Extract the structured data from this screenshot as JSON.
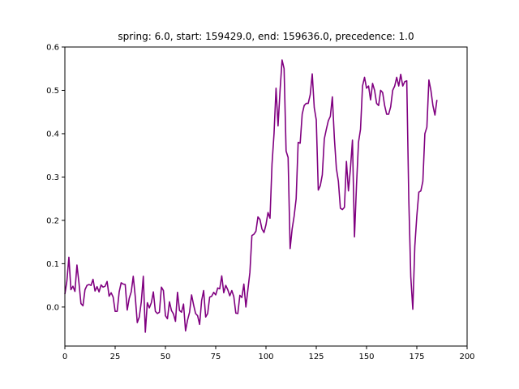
{
  "chart_data": {
    "type": "line",
    "title": "spring: 6.0, start: 159429.0, end: 159636.0, precedence: 1.0",
    "xlabel": "",
    "ylabel": "",
    "xlim": [
      0,
      200
    ],
    "ylim": [
      -0.09,
      0.6
    ],
    "xticks": [
      0,
      25,
      50,
      75,
      100,
      125,
      150,
      175,
      200
    ],
    "yticks": [
      0.0,
      0.1,
      0.2,
      0.3,
      0.4,
      0.5,
      0.6
    ],
    "ytick_labels": [
      "0.0",
      "0.1",
      "0.2",
      "0.3",
      "0.4",
      "0.5",
      "0.6"
    ],
    "grid": false,
    "legend": "none",
    "series": [
      {
        "color": "#800080",
        "x": [
          0,
          1,
          2,
          3,
          4,
          5,
          6,
          7,
          8,
          9,
          10,
          11,
          12,
          13,
          14,
          15,
          16,
          17,
          18,
          19,
          20,
          21,
          22,
          23,
          24,
          25,
          26,
          27,
          28,
          29,
          30,
          31,
          32,
          33,
          34,
          35,
          36,
          37,
          38,
          39,
          40,
          41,
          42,
          43,
          44,
          45,
          46,
          47,
          48,
          49,
          50,
          51,
          52,
          53,
          54,
          55,
          56,
          57,
          58,
          59,
          60,
          61,
          62,
          63,
          64,
          65,
          66,
          67,
          68,
          69,
          70,
          71,
          72,
          73,
          74,
          75,
          76,
          77,
          78,
          79,
          80,
          81,
          82,
          83,
          84,
          85,
          86,
          87,
          88,
          89,
          90,
          91,
          92,
          93,
          94,
          95,
          96,
          97,
          98,
          99,
          100,
          101,
          102,
          103,
          104,
          105,
          106,
          107,
          108,
          109,
          110,
          111,
          112,
          113,
          114,
          115,
          116,
          117,
          118,
          119,
          120,
          121,
          122,
          123,
          124,
          125,
          126,
          127,
          128,
          129,
          130,
          131,
          132,
          133,
          134,
          135,
          136,
          137,
          138,
          139,
          140,
          141,
          142,
          143,
          144,
          145,
          146,
          147,
          148,
          149,
          150,
          151,
          152,
          153,
          154,
          155,
          156,
          157,
          158,
          159,
          160,
          161,
          162,
          163,
          164,
          165,
          166,
          167,
          168,
          169,
          170,
          171,
          172,
          173,
          174,
          175,
          176,
          177,
          178,
          179,
          180,
          181,
          182,
          183,
          184,
          185
        ],
        "y": [
          0.03,
          0.06,
          0.115,
          0.04,
          0.048,
          0.036,
          0.097,
          0.056,
          0.008,
          0.003,
          0.04,
          0.05,
          0.052,
          0.05,
          0.064,
          0.037,
          0.047,
          0.035,
          0.051,
          0.046,
          0.048,
          0.059,
          0.025,
          0.033,
          0.023,
          -0.01,
          -0.01,
          0.035,
          0.056,
          0.053,
          0.052,
          -0.007,
          0.02,
          0.035,
          0.071,
          0.024,
          -0.036,
          -0.023,
          0.012,
          0.071,
          -0.058,
          0.01,
          -0.002,
          0.01,
          0.035,
          -0.01,
          -0.015,
          -0.012,
          0.046,
          0.038,
          -0.02,
          -0.027,
          0.012,
          -0.008,
          -0.016,
          -0.033,
          0.034,
          -0.008,
          -0.012,
          0.007,
          -0.055,
          -0.03,
          -0.012,
          0.028,
          0.005,
          -0.015,
          -0.02,
          -0.04,
          0.015,
          0.038,
          -0.023,
          -0.015,
          0.023,
          0.025,
          0.034,
          0.028,
          0.044,
          0.042,
          0.072,
          0.033,
          0.05,
          0.04,
          0.026,
          0.038,
          0.024,
          -0.014,
          -0.015,
          0.027,
          0.022,
          0.053,
          0.0,
          0.04,
          0.08,
          0.165,
          0.168,
          0.175,
          0.208,
          0.202,
          0.18,
          0.172,
          0.19,
          0.218,
          0.205,
          0.33,
          0.4,
          0.505,
          0.418,
          0.5,
          0.57,
          0.55,
          0.36,
          0.345,
          0.135,
          0.18,
          0.21,
          0.25,
          0.38,
          0.378,
          0.445,
          0.465,
          0.47,
          0.47,
          0.49,
          0.538,
          0.46,
          0.432,
          0.27,
          0.28,
          0.305,
          0.388,
          0.41,
          0.43,
          0.44,
          0.485,
          0.39,
          0.32,
          0.29,
          0.228,
          0.225,
          0.23,
          0.336,
          0.268,
          0.32,
          0.385,
          0.162,
          0.28,
          0.38,
          0.41,
          0.51,
          0.53,
          0.505,
          0.51,
          0.478,
          0.516,
          0.5,
          0.47,
          0.465,
          0.5,
          0.495,
          0.465,
          0.445,
          0.445,
          0.462,
          0.5,
          0.51,
          0.53,
          0.51,
          0.537,
          0.51,
          0.52,
          0.522,
          0.25,
          0.07,
          -0.005,
          0.14,
          0.21,
          0.265,
          0.268,
          0.29,
          0.4,
          0.415,
          0.524,
          0.5,
          0.465,
          0.443,
          0.478
        ]
      }
    ]
  }
}
